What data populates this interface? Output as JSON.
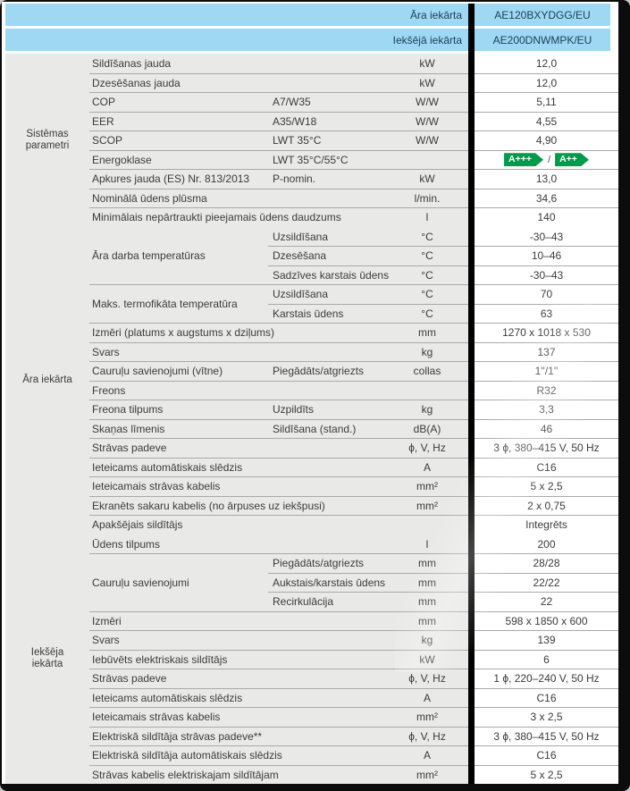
{
  "colors": {
    "header_blue": "#9ed8f3",
    "label_grey": "#e9e9e8",
    "line_grey": "#a8aaa9",
    "energy_green": "#009a4d",
    "header_text": "#1c4059",
    "body_text": "#3b3b3b"
  },
  "header": {
    "rows": [
      {
        "label": "Āra iekārta",
        "value": "AE120BXYDGG/EU"
      },
      {
        "label": "Iekšējā iekārta",
        "value": "AE200DNWMPK/EU"
      }
    ]
  },
  "energy_separator": "/",
  "sections": [
    {
      "group": "Sistēmas parametri",
      "blocks": [
        {
          "label": "Sildīšanas jauda",
          "rows": [
            {
              "sub": "",
              "unit": "kW",
              "value": "12,0"
            }
          ]
        },
        {
          "label": "Dzesēšanas jauda",
          "rows": [
            {
              "sub": "",
              "unit": "kW",
              "value": "12,0"
            }
          ]
        },
        {
          "label": "COP",
          "rows": [
            {
              "sub": "A7/W35",
              "unit": "W/W",
              "value": "5,11"
            }
          ]
        },
        {
          "label": "EER",
          "rows": [
            {
              "sub": "A35/W18",
              "unit": "W/W",
              "value": "4,55"
            }
          ]
        },
        {
          "label": "SCOP",
          "rows": [
            {
              "sub": "LWT 35°C",
              "unit": "W/W",
              "value": "4,90"
            }
          ]
        },
        {
          "label": "Energoklase",
          "rows": [
            {
              "sub": "LWT 35°C/55°C",
              "unit": "",
              "value": "",
              "energy": [
                "A+++",
                "A++"
              ]
            }
          ]
        },
        {
          "label": "Apkures jauda (ES) Nr. 813/2013",
          "rows": [
            {
              "sub": "P-nomin.",
              "unit": "kW",
              "value": "13,0"
            }
          ]
        },
        {
          "label": "Nominālā ūdens plūsma",
          "rows": [
            {
              "sub": "",
              "unit": "l/min.",
              "value": "34,6"
            }
          ]
        },
        {
          "label": "Minimālais nepārtraukti pieejamais ūdens daudzums",
          "rows": [
            {
              "sub": "",
              "unit": "l",
              "value": "140"
            }
          ]
        }
      ]
    },
    {
      "group": "Āra iekārta",
      "blocks": [
        {
          "label": "Āra darba temperatūras",
          "rows": [
            {
              "sub": "Uzsildīšana",
              "unit": "°C",
              "value": "-30–43"
            },
            {
              "sub": "Dzesēšana",
              "unit": "°C",
              "value": "10–46"
            },
            {
              "sub": "Sadzīves karstais ūdens",
              "unit": "°C",
              "value": "-30–43"
            }
          ]
        },
        {
          "label": "Maks. termofikāta temperatūra",
          "rows": [
            {
              "sub": "Uzsildīšana",
              "unit": "°C",
              "value": "70"
            },
            {
              "sub": "Karstais ūdens",
              "unit": "°C",
              "value": "63"
            }
          ]
        },
        {
          "label": "Izmēri (platums x augstums x dziļums)",
          "rows": [
            {
              "sub": "",
              "unit": "mm",
              "value": "1270 x 1018 x 530"
            }
          ]
        },
        {
          "label": "Svars",
          "rows": [
            {
              "sub": "",
              "unit": "kg",
              "value": "137"
            }
          ]
        },
        {
          "label": "Cauruļu savienojumi (vītne)",
          "rows": [
            {
              "sub": "Piegādāts/atgriezts",
              "unit": "collas",
              "value": "1''/1''"
            }
          ]
        },
        {
          "label": "Freons",
          "rows": [
            {
              "sub": "",
              "unit": "",
              "value": "R32"
            }
          ]
        },
        {
          "label": "Freona tilpums",
          "rows": [
            {
              "sub": "Uzpildīts",
              "unit": "kg",
              "value": "3,3"
            }
          ]
        },
        {
          "label": "Skaņas līmenis",
          "rows": [
            {
              "sub": "Sildīšana (stand.)",
              "unit": "dB(A)",
              "value": "46"
            }
          ]
        },
        {
          "label": "Strāvas padeve",
          "rows": [
            {
              "sub": "",
              "unit": "ϕ, V, Hz",
              "value": "3 ϕ, 380–415 V, 50 Hz"
            }
          ]
        },
        {
          "label": "Ieteicams automātiskais slēdzis",
          "rows": [
            {
              "sub": "",
              "unit": "A",
              "value": "C16"
            }
          ]
        },
        {
          "label": "Ieteicamais strāvas kabelis",
          "rows": [
            {
              "sub": "",
              "unit": "mm²",
              "value": "5 x 2,5"
            }
          ]
        },
        {
          "label": "Ekranēts sakaru kabelis (no ārpuses uz iekšpusi)",
          "rows": [
            {
              "sub": "",
              "unit": "mm²",
              "value": "2 x 0,75"
            }
          ]
        },
        {
          "label": "Apakšējais sildītājs",
          "rows": [
            {
              "sub": "",
              "unit": "",
              "value": "Integrēts"
            }
          ]
        }
      ]
    },
    {
      "group": "Iekšēja iekārta",
      "blocks": [
        {
          "label": "Ūdens tilpums",
          "rows": [
            {
              "sub": "",
              "unit": "l",
              "value": "200"
            }
          ]
        },
        {
          "label": "Cauruļu savienojumi",
          "rows": [
            {
              "sub": "Piegādāts/atgriezts",
              "unit": "mm",
              "value": "28/28"
            },
            {
              "sub": "Aukstais/karstais ūdens",
              "unit": "mm",
              "value": "22/22"
            },
            {
              "sub": "Recirkulācija",
              "unit": "mm",
              "value": "22"
            }
          ]
        },
        {
          "label": "Izmēri",
          "rows": [
            {
              "sub": "",
              "unit": "mm",
              "value": "598 x 1850 x 600"
            }
          ]
        },
        {
          "label": "Svars",
          "rows": [
            {
              "sub": "",
              "unit": "kg",
              "value": "139"
            }
          ]
        },
        {
          "label": "Iebūvēts elektriskais sildītājs",
          "rows": [
            {
              "sub": "",
              "unit": "kW",
              "value": "6"
            }
          ]
        },
        {
          "label": "Strāvas padeve",
          "rows": [
            {
              "sub": "",
              "unit": "ϕ, V, Hz",
              "value": "1 ϕ, 220–240 V, 50 Hz"
            }
          ]
        },
        {
          "label": "Ieteicams automātiskais slēdzis",
          "rows": [
            {
              "sub": "",
              "unit": "A",
              "value": "C16"
            }
          ]
        },
        {
          "label": "Ieteicamais strāvas kabelis",
          "rows": [
            {
              "sub": "",
              "unit": "mm²",
              "value": "3 x 2,5"
            }
          ]
        },
        {
          "label": "Elektriskā sildītāja strāvas padeve**",
          "rows": [
            {
              "sub": "",
              "unit": "ϕ, V, Hz",
              "value": "3 ϕ, 380–415 V, 50 Hz"
            }
          ]
        },
        {
          "label": "Elektriskā sildītāja automātiskais slēdzis",
          "rows": [
            {
              "sub": "",
              "unit": "A",
              "value": "C16"
            }
          ]
        },
        {
          "label": "Strāvas kabelis elektriskajam sildītājam",
          "rows": [
            {
              "sub": "",
              "unit": "mm²",
              "value": "5 x 2,5"
            }
          ]
        }
      ]
    }
  ]
}
